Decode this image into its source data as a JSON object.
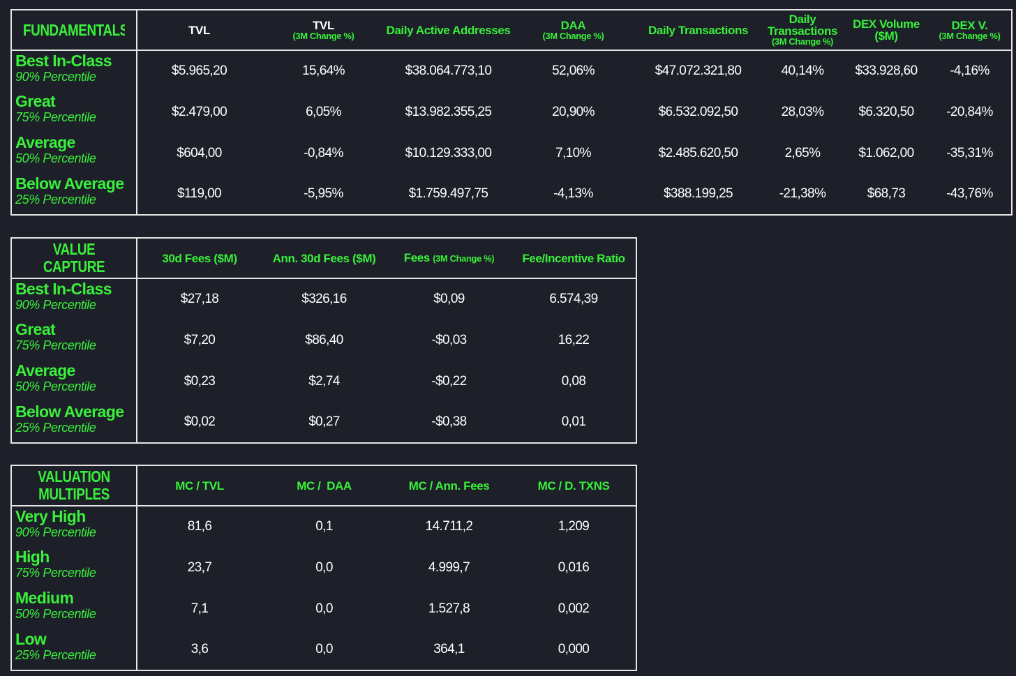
{
  "fundamentals": {
    "title": "FUNDAMENTALS",
    "columns": [
      {
        "main": "TVL",
        "sub": ""
      },
      {
        "main": "TVL",
        "sub": "(3M Change %)"
      },
      {
        "main": "Daily Active Addresses",
        "sub": ""
      },
      {
        "main": "DAA",
        "sub": "(3M Change %)"
      },
      {
        "main": "Daily Transactions",
        "sub": ""
      },
      {
        "main": "Daily Transactions",
        "sub": "(3M Change %)"
      },
      {
        "main": "DEX Volume ($M)",
        "sub": ""
      },
      {
        "main": "DEX V.",
        "sub": "(3M Change %)"
      }
    ],
    "rows": [
      {
        "label": "Best In-Class",
        "percentile": "90% Percentile",
        "values": [
          "$5.965,20",
          "15,64%",
          "$38.064.773,10",
          "52,06%",
          "$47.072.321,80",
          "40,14%",
          "$33.928,60",
          "-4,16%"
        ]
      },
      {
        "label": "Great",
        "percentile": "75% Percentile",
        "values": [
          "$2.479,00",
          "6,05%",
          "$13.982.355,25",
          "20,90%",
          "$6.532.092,50",
          "28,03%",
          "$6.320,50",
          "-20,84%"
        ]
      },
      {
        "label": "Average",
        "percentile": "50% Percentile",
        "values": [
          "$604,00",
          "-0,84%",
          "$10.129.333,00",
          "7,10%",
          "$2.485.620,50",
          "2,65%",
          "$1.062,00",
          "-35,31%"
        ]
      },
      {
        "label": "Below Average",
        "percentile": "25% Percentile",
        "values": [
          "$119,00",
          "-5,95%",
          "$1.759.497,75",
          "-4,13%",
          "$388.199,25",
          "-21,38%",
          "$68,73",
          "-43,76%"
        ]
      }
    ]
  },
  "value_capture": {
    "title": "VALUE CAPTURE",
    "columns": [
      {
        "main": "30d Fees ($M)",
        "sub": ""
      },
      {
        "main": "Ann. 30d Fees ($M)",
        "sub": ""
      },
      {
        "main": "Fees",
        "sub": "(3M Change %)"
      },
      {
        "main": "Fee/Incentive Ratio",
        "sub": ""
      }
    ],
    "rows": [
      {
        "label": "Best In-Class",
        "percentile": "90% Percentile",
        "values": [
          "$27,18",
          "$326,16",
          "$0,09",
          "6.574,39"
        ]
      },
      {
        "label": "Great",
        "percentile": "75% Percentile",
        "values": [
          "$7,20",
          "$86,40",
          "-$0,03",
          "16,22"
        ]
      },
      {
        "label": "Average",
        "percentile": "50% Percentile",
        "values": [
          "$0,23",
          "$2,74",
          "-$0,22",
          "0,08"
        ]
      },
      {
        "label": "Below Average",
        "percentile": "25% Percentile",
        "values": [
          "$0,02",
          "$0,27",
          "-$0,38",
          "0,01"
        ]
      }
    ]
  },
  "valuation_multiples": {
    "title_line1": "VALUATION",
    "title_line2": "MULTIPLES",
    "columns": [
      {
        "main": "MC / TVL",
        "sub": ""
      },
      {
        "main": "MC /  DAA",
        "sub": ""
      },
      {
        "main": "MC / Ann. Fees",
        "sub": ""
      },
      {
        "main": "MC / D. TXNS",
        "sub": ""
      }
    ],
    "rows": [
      {
        "label": "Very High",
        "percentile": "90% Percentile",
        "values": [
          "81,6",
          "0,1",
          "14.711,2",
          "1,209"
        ]
      },
      {
        "label": "High",
        "percentile": "75% Percentile",
        "values": [
          "23,7",
          "0,0",
          "4.999,7",
          "0,016"
        ]
      },
      {
        "label": "Medium",
        "percentile": "50% Percentile",
        "values": [
          "7,1",
          "0,0",
          "1.527,8",
          "0,002"
        ]
      },
      {
        "label": "Low",
        "percentile": "25% Percentile",
        "values": [
          "3,6",
          "0,0",
          "364,1",
          "0,000"
        ]
      }
    ]
  },
  "colors": {
    "background": "#1d1f29",
    "accent_green": "#39f03a",
    "border": "#e6e6e6",
    "text": "#ffffff"
  }
}
